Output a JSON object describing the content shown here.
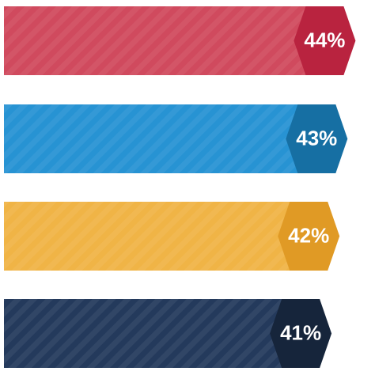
{
  "chart_data": {
    "type": "bar",
    "orientation": "horizontal",
    "values": [
      44,
      43,
      42,
      41
    ],
    "value_labels": [
      "44%",
      "43%",
      "42%",
      "41%"
    ],
    "colors": [
      "#d04a5e",
      "#2793d3",
      "#f0b446",
      "#243a5c"
    ],
    "label_colors": [
      "#b9233f",
      "#166fa3",
      "#e09a25",
      "#16253b"
    ]
  }
}
